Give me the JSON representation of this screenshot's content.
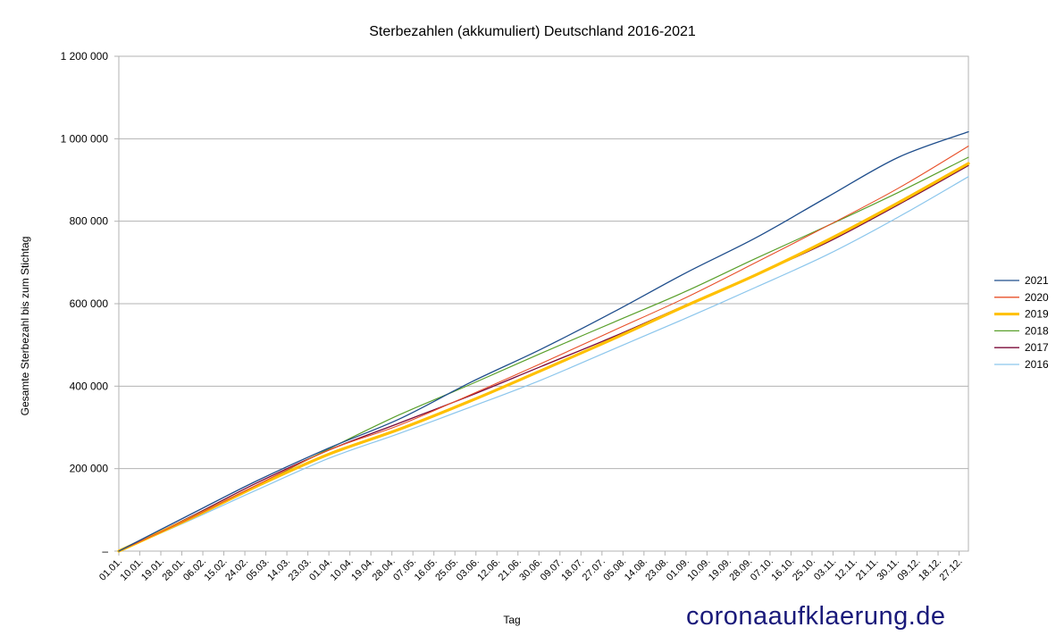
{
  "chart_data": {
    "type": "line",
    "title": "Sterbezahlen (akkumuliert) Deutschland 2016-2021",
    "xlabel": "Tag",
    "ylabel": "Gesamte Sterbezahl bis zum Stichtag",
    "ylim": [
      0,
      1200000
    ],
    "yticks": [
      0,
      200000,
      400000,
      600000,
      800000,
      1000000,
      1200000
    ],
    "ytick_labels": [
      "–",
      "200 000",
      "400 000",
      "600 000",
      "800 000",
      "1 000 000",
      "1 200 000"
    ],
    "x_tick_labels": [
      "01.01.",
      "10.01.",
      "19.01.",
      "28.01.",
      "06.02.",
      "15.02.",
      "24.02.",
      "05.03.",
      "14.03.",
      "23.03.",
      "01.04.",
      "10.04.",
      "19.04.",
      "28.04.",
      "07.05.",
      "16.05.",
      "25.05.",
      "03.06.",
      "12.06.",
      "21.06.",
      "30.06.",
      "09.07.",
      "18.07.",
      "27.07.",
      "05.08.",
      "14.08.",
      "23.08.",
      "01.09.",
      "10.09.",
      "19.09.",
      "28.09.",
      "07.10.",
      "16.10.",
      "25.10.",
      "03.11.",
      "12.11.",
      "21.11.",
      "30.11.",
      "09.12.",
      "18.12.",
      "27.12."
    ],
    "x_days": [
      1,
      32,
      60,
      91,
      121,
      152,
      182,
      213,
      244,
      274,
      305,
      335,
      365
    ],
    "grid": true,
    "legend": "right",
    "series": [
      {
        "name": "2021",
        "color": "#1f4e8c",
        "width": 1.3,
        "values": [
          0,
          90000,
          170000,
          250000,
          320000,
          410000,
          490000,
          580000,
          675000,
          760000,
          860000,
          955000,
          1017000
        ]
      },
      {
        "name": "2020",
        "color": "#e8502a",
        "width": 1.1,
        "values": [
          0,
          81000,
          160000,
          245000,
          305000,
          380000,
          455000,
          535000,
          615000,
          700000,
          790000,
          880000,
          982000
        ]
      },
      {
        "name": "2019",
        "color": "#ffc000",
        "width": 3.2,
        "values": [
          0,
          80000,
          157000,
          235000,
          295000,
          365000,
          438000,
          515000,
          595000,
          670000,
          755000,
          845000,
          940000
        ]
      },
      {
        "name": "2018",
        "color": "#5aa02c",
        "width": 1.2,
        "values": [
          0,
          79000,
          158000,
          248000,
          330000,
          405000,
          480000,
          555000,
          630000,
          710000,
          790000,
          870000,
          955000
        ]
      },
      {
        "name": "2017",
        "color": "#7b0a3a",
        "width": 1.3,
        "values": [
          0,
          84000,
          165000,
          245000,
          310000,
          378000,
          448000,
          520000,
          597000,
          670000,
          750000,
          840000,
          935000
        ]
      },
      {
        "name": "2016",
        "color": "#8cc6ec",
        "width": 1.2,
        "values": [
          0,
          76000,
          148000,
          225000,
          285000,
          350000,
          415000,
          490000,
          565000,
          640000,
          720000,
          810000,
          908000
        ]
      }
    ]
  },
  "watermark": "coronaaufklaerung.de"
}
